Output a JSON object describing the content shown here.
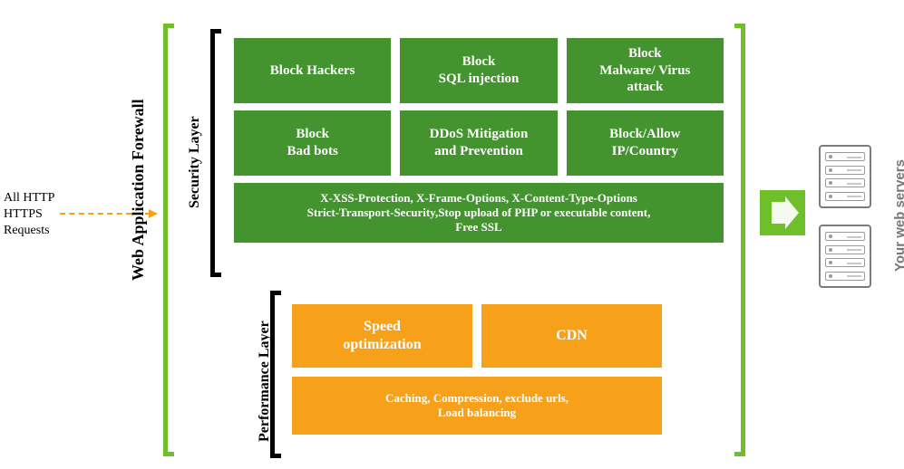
{
  "colors": {
    "green": "#43932f",
    "brightGreen": "#6fbf2b",
    "orange": "#f7a11a",
    "dashedArrow": "#f7a11a",
    "wafBracket": "#6fbf2b",
    "text": "#000000",
    "serverGray": "#7b7b7b"
  },
  "left": {
    "line1": "All HTTP",
    "line2": "HTTPS",
    "line3": "Requests"
  },
  "wafLabel": "Web Application Forewall",
  "securityLayerLabel": "Security Layer",
  "performanceLayerLabel": "Performance Layer",
  "security": {
    "boxes": [
      "Block Hackers",
      "Block\nSQL injection",
      "Block\nMalware/ Virus\nattack",
      "Block\nBad bots",
      "DDoS Mitigation\nand Prevention",
      "Block/Allow\nIP/Country"
    ],
    "wide": "X-XSS-Protection, X-Frame-Options, X-Content-Type-Options\nStrict-Transport-Security,Stop upload of PHP or executable content,\nFree SSL"
  },
  "performance": {
    "boxes": [
      "Speed\noptimization",
      "CDN"
    ],
    "wide": "Caching, Compression, exclude urls,\nLoad balancing"
  },
  "serversLabel": "Your web servers"
}
